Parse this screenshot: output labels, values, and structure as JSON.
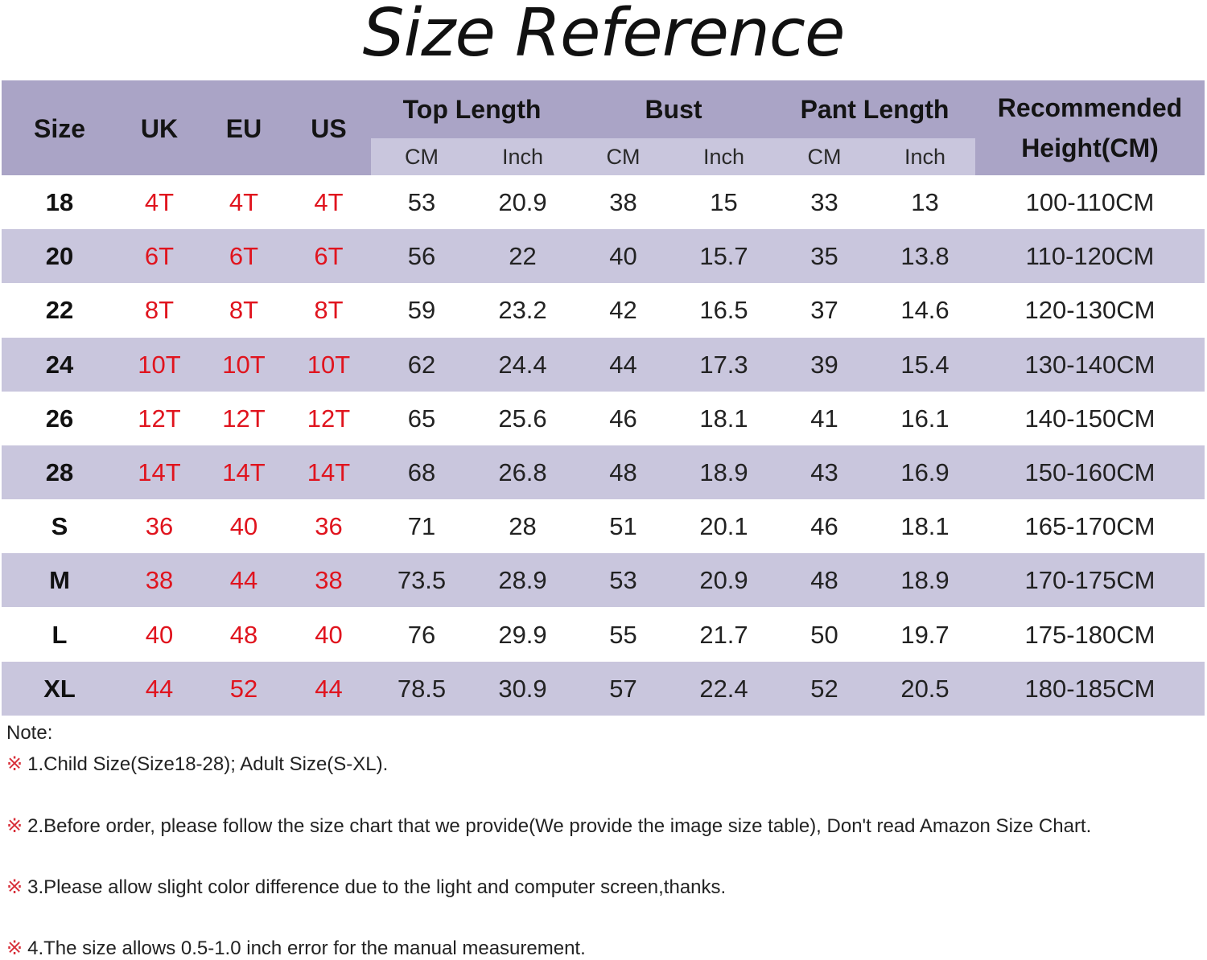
{
  "title": "Size Reference",
  "header": {
    "size": "Size",
    "uk": "UK",
    "eu": "EU",
    "us": "US",
    "top_length": "Top Length",
    "bust": "Bust",
    "pant_length": "Pant Length",
    "recommended_1": "Recommended",
    "recommended_2": "Height(CM)",
    "cm": "CM",
    "inch": "Inch"
  },
  "colors": {
    "header": "#aaa4c6",
    "stripe": "#c9c6dd",
    "country_sizes": "#e0141e"
  },
  "rows": [
    [
      "18",
      "4T",
      "4T",
      "4T",
      "53",
      "20.9",
      "38",
      "15",
      "33",
      "13",
      "100-110CM"
    ],
    [
      "20",
      "6T",
      "6T",
      "6T",
      "56",
      "22",
      "40",
      "15.7",
      "35",
      "13.8",
      "110-120CM"
    ],
    [
      "22",
      "8T",
      "8T",
      "8T",
      "59",
      "23.2",
      "42",
      "16.5",
      "37",
      "14.6",
      "120-130CM"
    ],
    [
      "24",
      "10T",
      "10T",
      "10T",
      "62",
      "24.4",
      "44",
      "17.3",
      "39",
      "15.4",
      "130-140CM"
    ],
    [
      "26",
      "12T",
      "12T",
      "12T",
      "65",
      "25.6",
      "46",
      "18.1",
      "41",
      "16.1",
      "140-150CM"
    ],
    [
      "28",
      "14T",
      "14T",
      "14T",
      "68",
      "26.8",
      "48",
      "18.9",
      "43",
      "16.9",
      "150-160CM"
    ],
    [
      "S",
      "36",
      "40",
      "36",
      "71",
      "28",
      "51",
      "20.1",
      "46",
      "18.1",
      "165-170CM"
    ],
    [
      "M",
      "38",
      "44",
      "38",
      "73.5",
      "28.9",
      "53",
      "20.9",
      "48",
      "18.9",
      "170-175CM"
    ],
    [
      "L",
      "40",
      "48",
      "40",
      "76",
      "29.9",
      "55",
      "21.7",
      "50",
      "19.7",
      "175-180CM"
    ],
    [
      "XL",
      "44",
      "52",
      "44",
      "78.5",
      "30.9",
      "57",
      "22.4",
      "52",
      "20.5",
      "180-185CM"
    ]
  ],
  "notes": {
    "label": "Note:",
    "mark": "※",
    "items": [
      "1.Child Size(Size18-28); Adult Size(S-XL).",
      "2.Before order, please follow the size chart that we provide(We provide the image size table), Don't read Amazon Size Chart.",
      "3.Please allow slight color difference due to the light and computer screen,thanks.",
      "4.The size allows 0.5-1.0 inch error for the manual measurement."
    ]
  }
}
